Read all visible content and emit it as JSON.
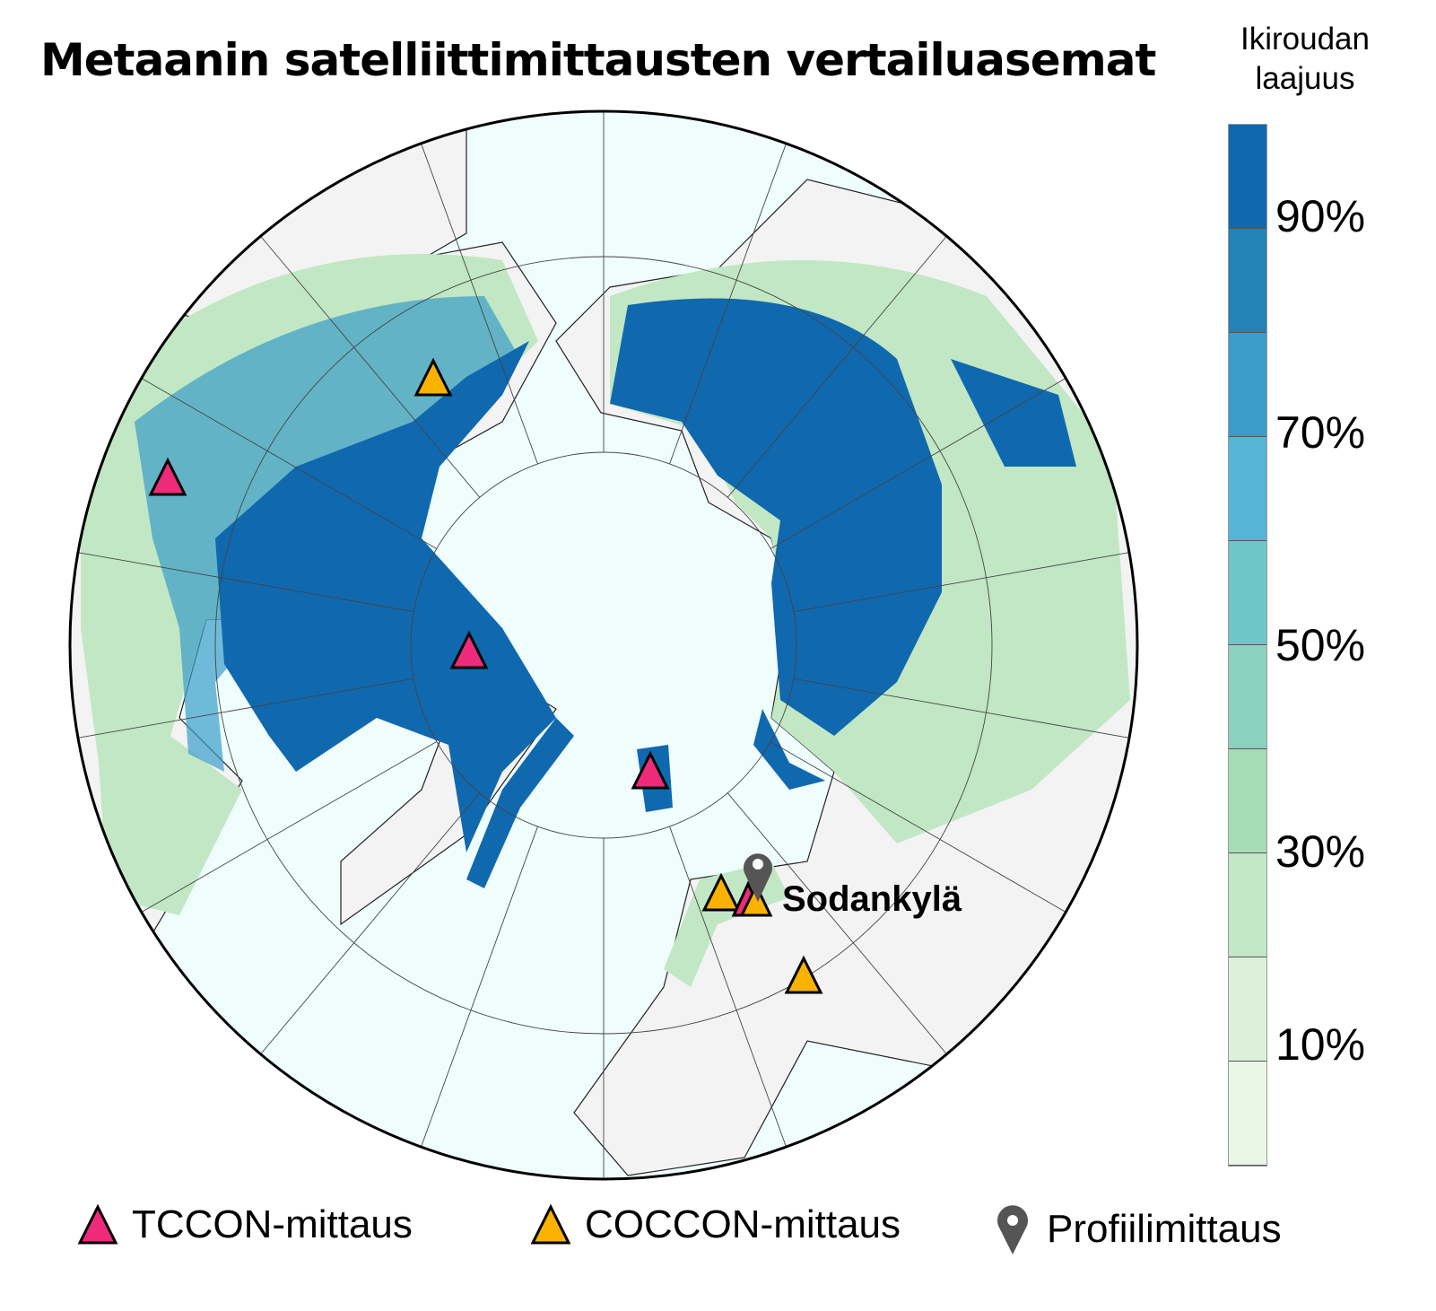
{
  "title": "Metaanin satelliittimittausten vertailuasemat",
  "colorbar": {
    "title_line1": "Ikiroudan",
    "title_line2": "laajuus",
    "labels": [
      "90%",
      "70%",
      "50%",
      "30%",
      "10%"
    ],
    "colors": [
      "#1068ae",
      "#2382b8",
      "#3b9cc9",
      "#56b5d5",
      "#6fc6c8",
      "#8bd1c0",
      "#a6dcb6",
      "#c1e7c4",
      "#ddf1da",
      "#eaf6e6"
    ]
  },
  "map": {
    "ocean_color": "#effdfd",
    "land_color": "#f3f3f3",
    "station_label": "Sodankylä"
  },
  "legend": {
    "tccon": {
      "label": "TCCON-mittaus",
      "color": "#ee2a7b"
    },
    "coccon": {
      "label": "COCCON-mittaus",
      "color": "#f9b200"
    },
    "profile": {
      "label": "Profiilimittaus",
      "color": "#555555"
    }
  }
}
